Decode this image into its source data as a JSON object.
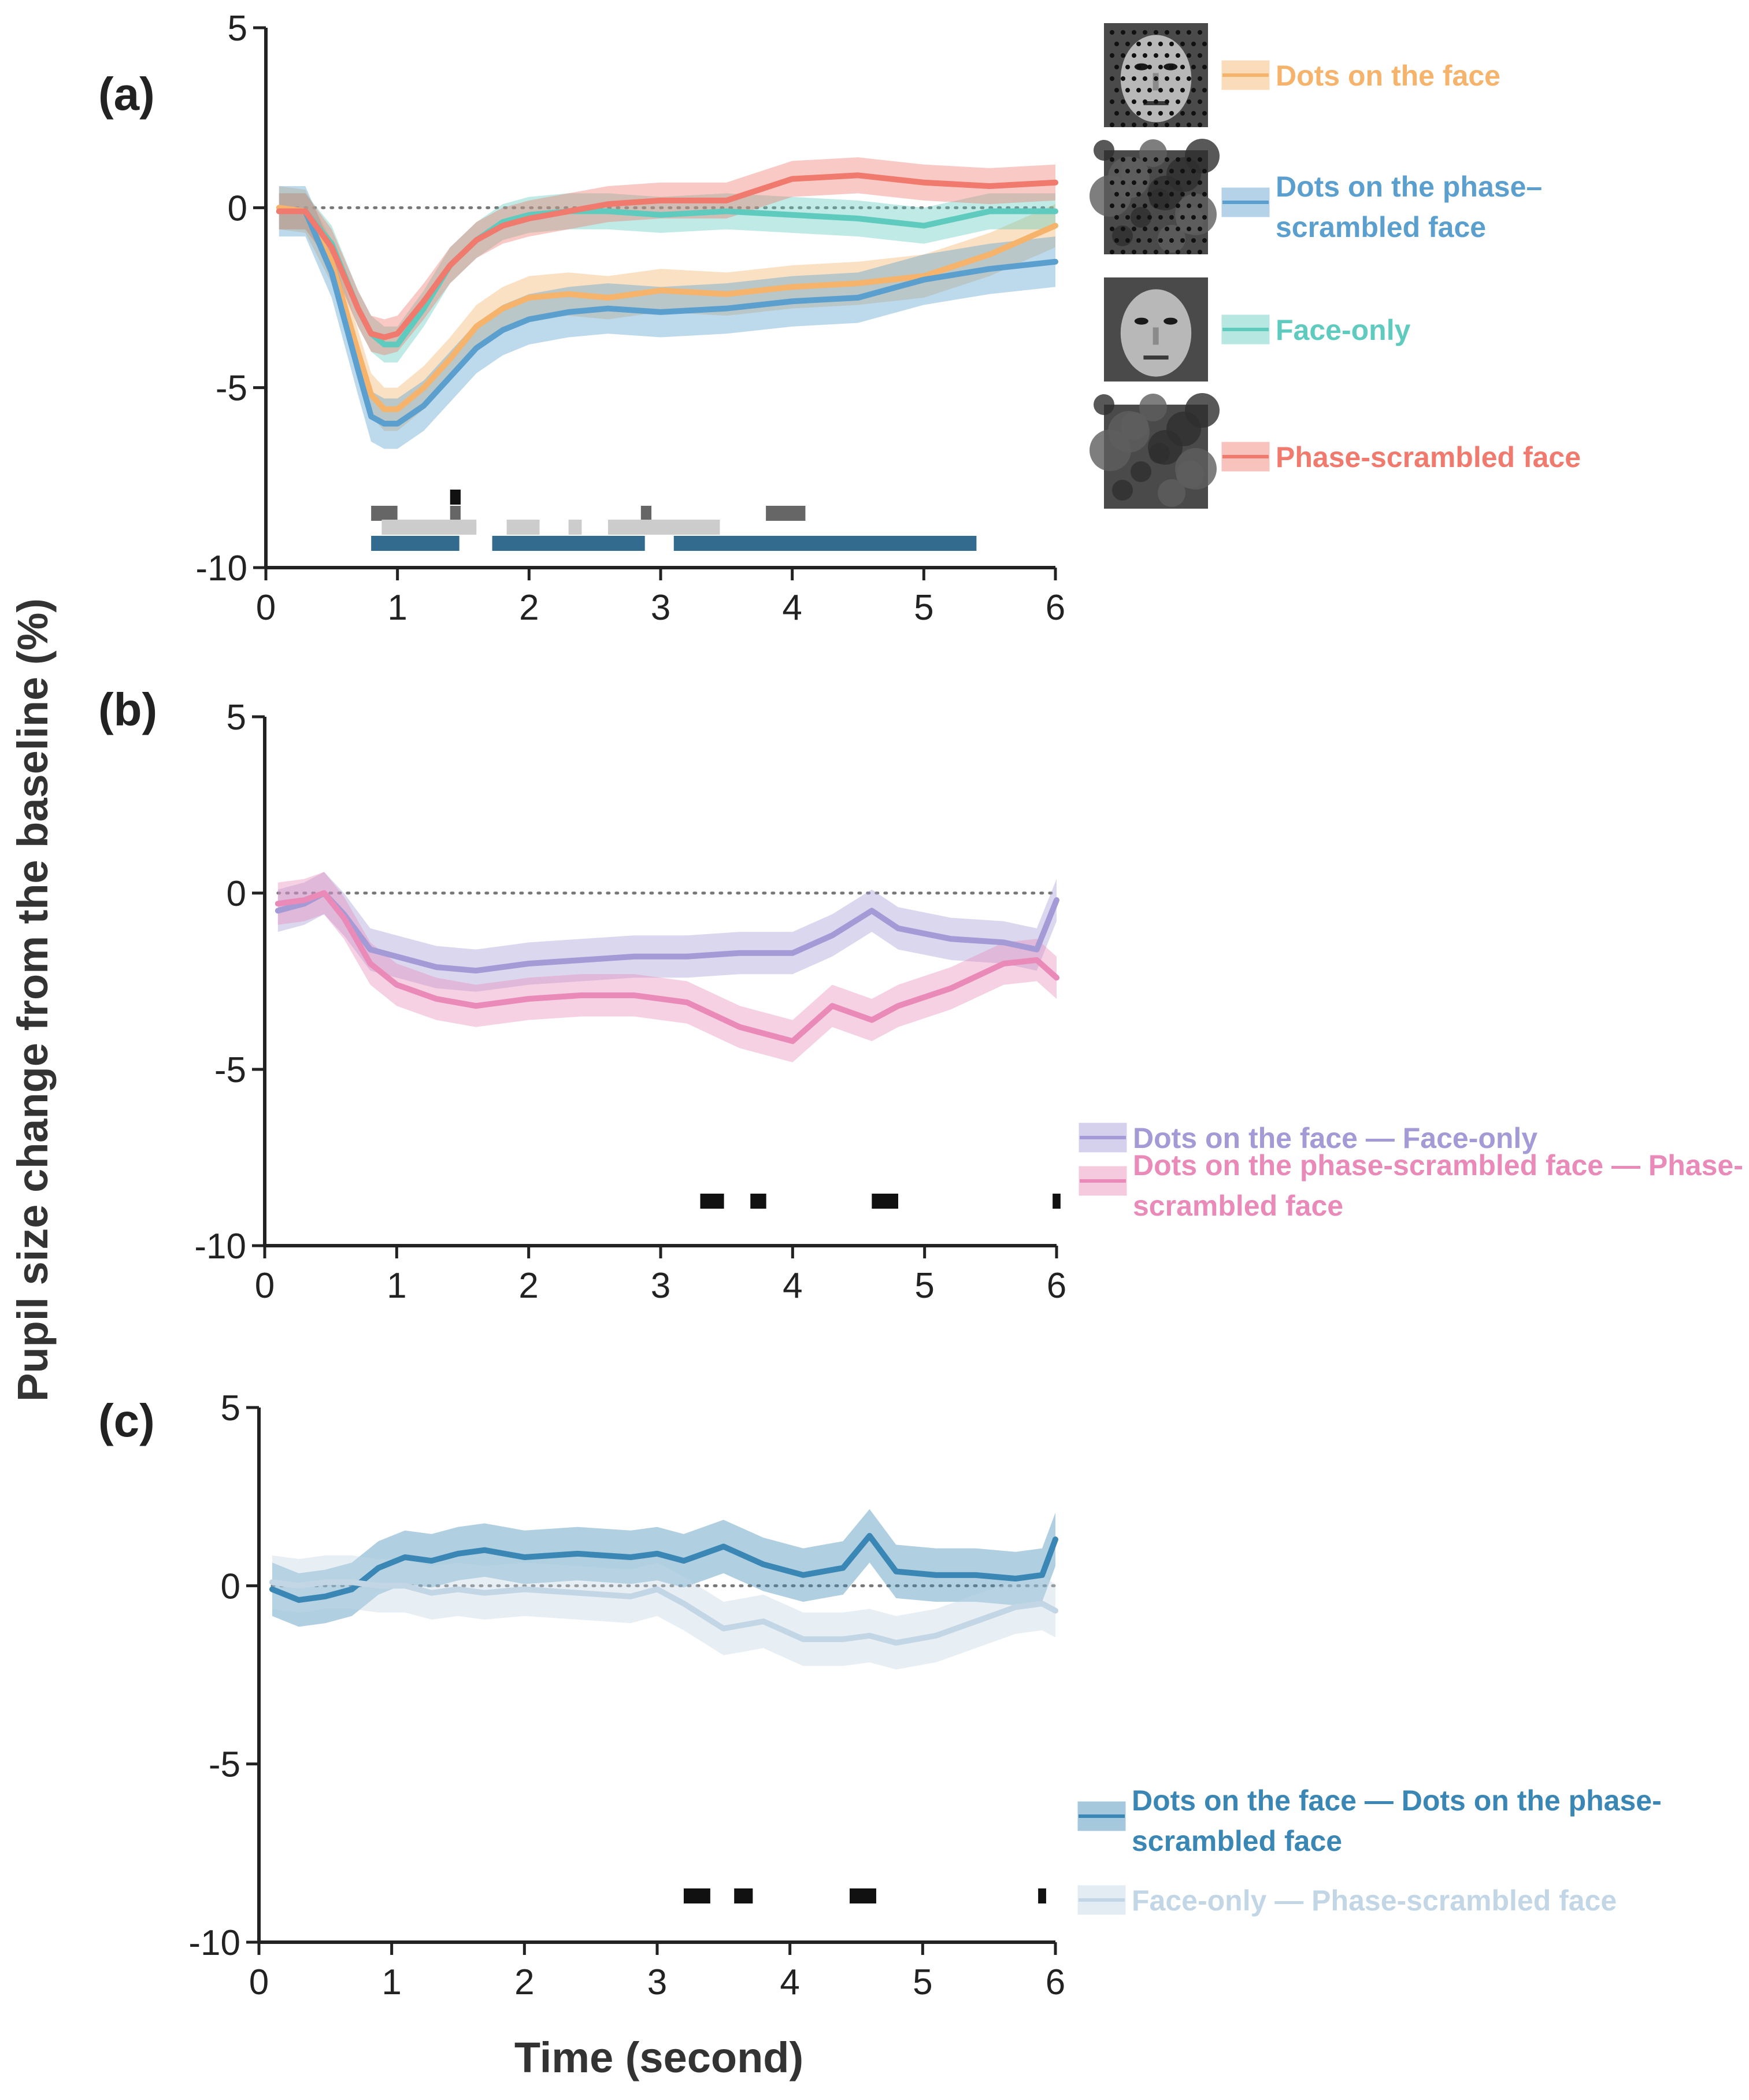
{
  "figure": {
    "y_axis_title": "Pupil size change from the baseline (%)",
    "x_axis_title": "Time (second)"
  },
  "chart_data": [
    {
      "type": "line",
      "panel_label": "(a)",
      "xlim": [
        0,
        6
      ],
      "ylim": [
        -10,
        5
      ],
      "x_ticks": [
        "0",
        "1",
        "2",
        "3",
        "4",
        "5",
        "6"
      ],
      "y_ticks": [
        "5",
        "0",
        "-5",
        "-10"
      ],
      "xlabel": "Time (second)",
      "ylabel": "Pupil size change from the baseline (%)",
      "baseline": 0,
      "x": [
        0.1,
        0.3,
        0.5,
        0.7,
        0.8,
        0.9,
        1.0,
        1.2,
        1.4,
        1.6,
        1.8,
        2.0,
        2.3,
        2.6,
        3.0,
        3.5,
        4.0,
        4.5,
        5.0,
        5.5,
        6.0
      ],
      "series": [
        {
          "name": "Dots on the face",
          "color": "#f5b36b",
          "band": 0.6,
          "values": [
            0,
            -0.1,
            -1.5,
            -4.0,
            -5.2,
            -5.6,
            -5.6,
            -5.0,
            -4.2,
            -3.3,
            -2.8,
            -2.5,
            -2.4,
            -2.5,
            -2.3,
            -2.4,
            -2.2,
            -2.1,
            -1.9,
            -1.3,
            -0.5
          ]
        },
        {
          "name": "Dots on the phase-scrambled face",
          "color": "#5b9fcf",
          "band": 0.7,
          "values": [
            -0.1,
            -0.1,
            -1.8,
            -4.5,
            -5.8,
            -6.0,
            -6.0,
            -5.5,
            -4.7,
            -3.9,
            -3.4,
            -3.1,
            -2.9,
            -2.8,
            -2.9,
            -2.8,
            -2.6,
            -2.5,
            -2.0,
            -1.7,
            -1.5
          ]
        },
        {
          "name": "Face-only",
          "color": "#5ecbbe",
          "band": 0.5,
          "values": [
            -0.1,
            -0.1,
            -1.0,
            -2.8,
            -3.5,
            -3.8,
            -3.8,
            -2.8,
            -1.6,
            -0.9,
            -0.4,
            -0.2,
            -0.1,
            -0.1,
            -0.2,
            -0.1,
            -0.2,
            -0.3,
            -0.5,
            -0.1,
            -0.1
          ]
        },
        {
          "name": "Phase-scrambled face",
          "color": "#f07a6e",
          "band": 0.5,
          "values": [
            -0.1,
            -0.1,
            -1.1,
            -2.8,
            -3.5,
            -3.6,
            -3.5,
            -2.6,
            -1.6,
            -0.9,
            -0.5,
            -0.3,
            -0.1,
            0.1,
            0.2,
            0.2,
            0.8,
            0.9,
            0.7,
            0.6,
            0.7
          ]
        }
      ],
      "significance": [
        {
          "row": 1,
          "color": "#666666",
          "intervals": [
            [
              0.8,
              1.0
            ],
            [
              1.4,
              1.48
            ],
            [
              2.85,
              2.93
            ],
            [
              3.8,
              4.1
            ]
          ]
        },
        {
          "row": 0,
          "color": "#111111",
          "intervals": [
            [
              1.4,
              1.48
            ]
          ]
        },
        {
          "row": 2,
          "color": "#cccccc",
          "intervals": [
            [
              0.88,
              1.6
            ],
            [
              1.83,
              2.08
            ],
            [
              2.3,
              2.4
            ],
            [
              2.6,
              3.45
            ]
          ]
        },
        {
          "row": 3,
          "color": "#336b8f",
          "intervals": [
            [
              0.8,
              1.47
            ],
            [
              1.72,
              2.88
            ],
            [
              3.1,
              5.4
            ]
          ]
        }
      ],
      "legend": [
        {
          "label": "Dots on the face",
          "color": "#f5b36b",
          "thumbnail": "dots-face"
        },
        {
          "label_lines": [
            "Dots on the phase–",
            "scrambled face"
          ],
          "color": "#5b9fcf",
          "thumbnail": "dots-scrambled"
        },
        {
          "label": "Face-only",
          "color": "#5ecbbe",
          "thumbnail": "face"
        },
        {
          "label": "Phase-scrambled face",
          "color": "#f07a6e",
          "thumbnail": "scrambled"
        }
      ]
    },
    {
      "type": "line",
      "panel_label": "(b)",
      "xlim": [
        0,
        6
      ],
      "ylim": [
        -10,
        5
      ],
      "x_ticks": [
        "0",
        "1",
        "2",
        "3",
        "4",
        "5",
        "6"
      ],
      "y_ticks": [
        "5",
        "0",
        "-5",
        "-10"
      ],
      "baseline": 0,
      "x": [
        0.1,
        0.3,
        0.45,
        0.6,
        0.8,
        1.0,
        1.3,
        1.6,
        2.0,
        2.4,
        2.8,
        3.2,
        3.6,
        4.0,
        4.3,
        4.6,
        4.8,
        5.2,
        5.6,
        5.85,
        6.0
      ],
      "series": [
        {
          "name": "Dots on the face — Face-only",
          "color": "#a49ad6",
          "band": 0.6,
          "values": [
            -0.5,
            -0.3,
            0.0,
            -0.6,
            -1.6,
            -1.8,
            -2.1,
            -2.2,
            -2.0,
            -1.9,
            -1.8,
            -1.8,
            -1.7,
            -1.7,
            -1.2,
            -0.5,
            -1.0,
            -1.3,
            -1.4,
            -1.6,
            -0.2
          ]
        },
        {
          "name": "Dots on the phase-scrambled face — Phase-scrambled face",
          "color": "#e98ab8",
          "band": 0.6,
          "values": [
            -0.3,
            -0.2,
            0.0,
            -0.7,
            -2.0,
            -2.6,
            -3.0,
            -3.2,
            -3.0,
            -2.9,
            -2.9,
            -3.1,
            -3.8,
            -4.2,
            -3.2,
            -3.6,
            -3.2,
            -2.7,
            -2.0,
            -1.9,
            -2.4
          ]
        }
      ],
      "significance": [
        {
          "row": 0,
          "color": "#111111",
          "intervals": [
            [
              3.3,
              3.48
            ],
            [
              3.68,
              3.8
            ],
            [
              4.6,
              4.8
            ],
            [
              5.97,
              6.03
            ]
          ]
        }
      ],
      "legend": [
        {
          "label": "Dots on the face — Face-only",
          "color": "#a49ad6"
        },
        {
          "label_lines": [
            "Dots on the phase-scrambled face — Phase-",
            "scrambled face"
          ],
          "color": "#e98ab8"
        }
      ]
    },
    {
      "type": "line",
      "panel_label": "(c)",
      "xlim": [
        0,
        6
      ],
      "ylim": [
        -10,
        5
      ],
      "x_ticks": [
        "0",
        "1",
        "2",
        "3",
        "4",
        "5",
        "6"
      ],
      "y_ticks": [
        "5",
        "0",
        "-5",
        "-10"
      ],
      "baseline": 0,
      "x": [
        0.1,
        0.3,
        0.5,
        0.7,
        0.9,
        1.1,
        1.3,
        1.5,
        1.7,
        2.0,
        2.4,
        2.8,
        3.0,
        3.2,
        3.5,
        3.8,
        4.1,
        4.4,
        4.6,
        4.8,
        5.1,
        5.4,
        5.7,
        5.9,
        6.0
      ],
      "series": [
        {
          "name": "Dots on the face — Dots on the phase-scrambled face",
          "color": "#3a86b4",
          "band": 0.75,
          "values": [
            -0.1,
            -0.4,
            -0.3,
            -0.1,
            0.5,
            0.8,
            0.7,
            0.9,
            1.0,
            0.8,
            0.9,
            0.8,
            0.9,
            0.7,
            1.1,
            0.6,
            0.3,
            0.5,
            1.4,
            0.4,
            0.3,
            0.3,
            0.2,
            0.3,
            1.3
          ]
        },
        {
          "name": "Face-only — Phase-scrambled face",
          "color": "#c3d6e6",
          "band": 0.75,
          "values": [
            0.1,
            0.0,
            0.1,
            0.1,
            0.0,
            0.0,
            -0.2,
            -0.1,
            -0.2,
            -0.1,
            -0.2,
            -0.3,
            -0.1,
            -0.5,
            -1.2,
            -1.0,
            -1.5,
            -1.5,
            -1.4,
            -1.6,
            -1.4,
            -1.0,
            -0.6,
            -0.5,
            -0.7
          ]
        }
      ],
      "significance": [
        {
          "row": 0,
          "color": "#111111",
          "intervals": [
            [
              3.2,
              3.4
            ],
            [
              3.58,
              3.72
            ],
            [
              4.45,
              4.65
            ],
            [
              5.87,
              5.93
            ]
          ]
        }
      ],
      "legend": [
        {
          "label_lines": [
            "Dots on the face — Dots on the phase-",
            "scrambled face"
          ],
          "color": "#3a86b4"
        },
        {
          "label": "Face-only — Phase-scrambled face",
          "color": "#c3d6e6"
        }
      ]
    }
  ]
}
